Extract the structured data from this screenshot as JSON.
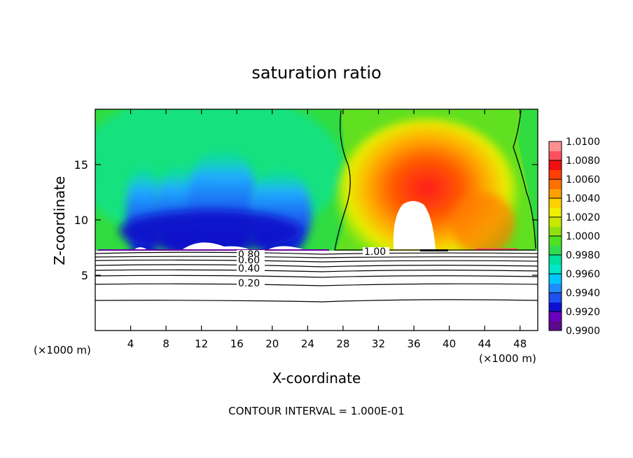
{
  "chart_data": {
    "type": "heatmap",
    "title": "saturation ratio",
    "xlabel": "X-coordinate",
    "ylabel": "Z-coordinate",
    "x_unit_left": "(×1000 m)",
    "x_unit_right": "(×1000 m)",
    "xlim": [
      0,
      50
    ],
    "ylim": [
      0,
      20
    ],
    "x_ticks": [
      4,
      8,
      12,
      16,
      20,
      24,
      28,
      32,
      36,
      40,
      44,
      48
    ],
    "y_ticks": [
      5,
      10,
      15
    ],
    "colorbar": {
      "min": 0.99,
      "max": 1.01,
      "labels": [
        "1.0100",
        "1.0080",
        "1.0060",
        "1.0040",
        "1.0020",
        "1.0000",
        "0.9980",
        "0.9960",
        "0.9940",
        "0.9920",
        "0.9900"
      ],
      "colors": [
        "#5a0a8a",
        "#6a00c0",
        "#1010d0",
        "#1e50f0",
        "#1e8cff",
        "#00c8ff",
        "#00e8c8",
        "#00e0a0",
        "#30dc50",
        "#50e020",
        "#90e010",
        "#c8e800",
        "#f0f000",
        "#ffd000",
        "#ffa000",
        "#ff7000",
        "#ff4000",
        "#f01010",
        "#ff5060",
        "#ff9090"
      ]
    },
    "contour_labels": [
      "0.80",
      "0.60",
      "0.40",
      "0.20",
      "1.00"
    ],
    "contour_interval_text": "CONTOUR INTERVAL = 1.000E-01"
  }
}
